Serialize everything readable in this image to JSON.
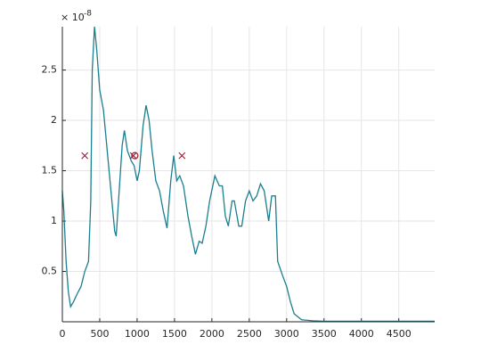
{
  "chart_data": {
    "type": "line",
    "y_multiplier": {
      "base": "× 10",
      "exponent": "-8"
    },
    "series": [
      {
        "color": "#1a7f8e",
        "x": [
          0,
          20,
          50,
          80,
          110,
          150,
          200,
          250,
          300,
          350,
          380,
          400,
          430,
          460,
          500,
          550,
          600,
          650,
          700,
          720,
          760,
          800,
          830,
          870,
          920,
          960,
          1000,
          1030,
          1080,
          1120,
          1160,
          1200,
          1250,
          1300,
          1350,
          1400,
          1450,
          1490,
          1530,
          1570,
          1620,
          1680,
          1730,
          1780,
          1830,
          1870,
          1920,
          1970,
          2040,
          2100,
          2140,
          2180,
          2220,
          2270,
          2300,
          2360,
          2400,
          2450,
          2500,
          2550,
          2600,
          2650,
          2700,
          2760,
          2800,
          2850,
          2880,
          2950,
          3000,
          3050,
          3100,
          3200,
          3350,
          3500,
          4000,
          4980
        ],
        "values": [
          1.3,
          1.1,
          0.6,
          0.3,
          0.15,
          0.2,
          0.28,
          0.35,
          0.5,
          0.6,
          1.2,
          2.5,
          2.93,
          2.7,
          2.3,
          2.1,
          1.7,
          1.3,
          0.9,
          0.85,
          1.3,
          1.75,
          1.9,
          1.7,
          1.6,
          1.55,
          1.4,
          1.5,
          1.95,
          2.15,
          2.0,
          1.7,
          1.4,
          1.3,
          1.1,
          0.93,
          1.4,
          1.65,
          1.4,
          1.45,
          1.35,
          1.05,
          0.85,
          0.67,
          0.8,
          0.78,
          0.95,
          1.2,
          1.45,
          1.35,
          1.35,
          1.05,
          0.95,
          1.2,
          1.2,
          0.95,
          0.95,
          1.2,
          1.3,
          1.2,
          1.25,
          1.37,
          1.3,
          1.0,
          1.25,
          1.25,
          0.6,
          0.45,
          0.35,
          0.2,
          0.08,
          0.02,
          0.01,
          0.005,
          0.005,
          0.005
        ]
      }
    ],
    "markers": [
      {
        "shape": "cross",
        "color": "#a2142f",
        "x": [
          300,
          950,
          1600
        ],
        "values": [
          1.65,
          1.65,
          1.65
        ]
      },
      {
        "shape": "circle",
        "color": "#a2142f",
        "x": [
          970
        ],
        "values": [
          1.65
        ]
      }
    ],
    "xlim": [
      0,
      4980
    ],
    "ylim": [
      0,
      2.93
    ],
    "xticks": [
      0,
      500,
      1000,
      1500,
      2000,
      2500,
      3000,
      3500,
      4000,
      4500
    ],
    "yticks": [
      0.5,
      1,
      1.5,
      2,
      2.5
    ],
    "grid": true
  }
}
